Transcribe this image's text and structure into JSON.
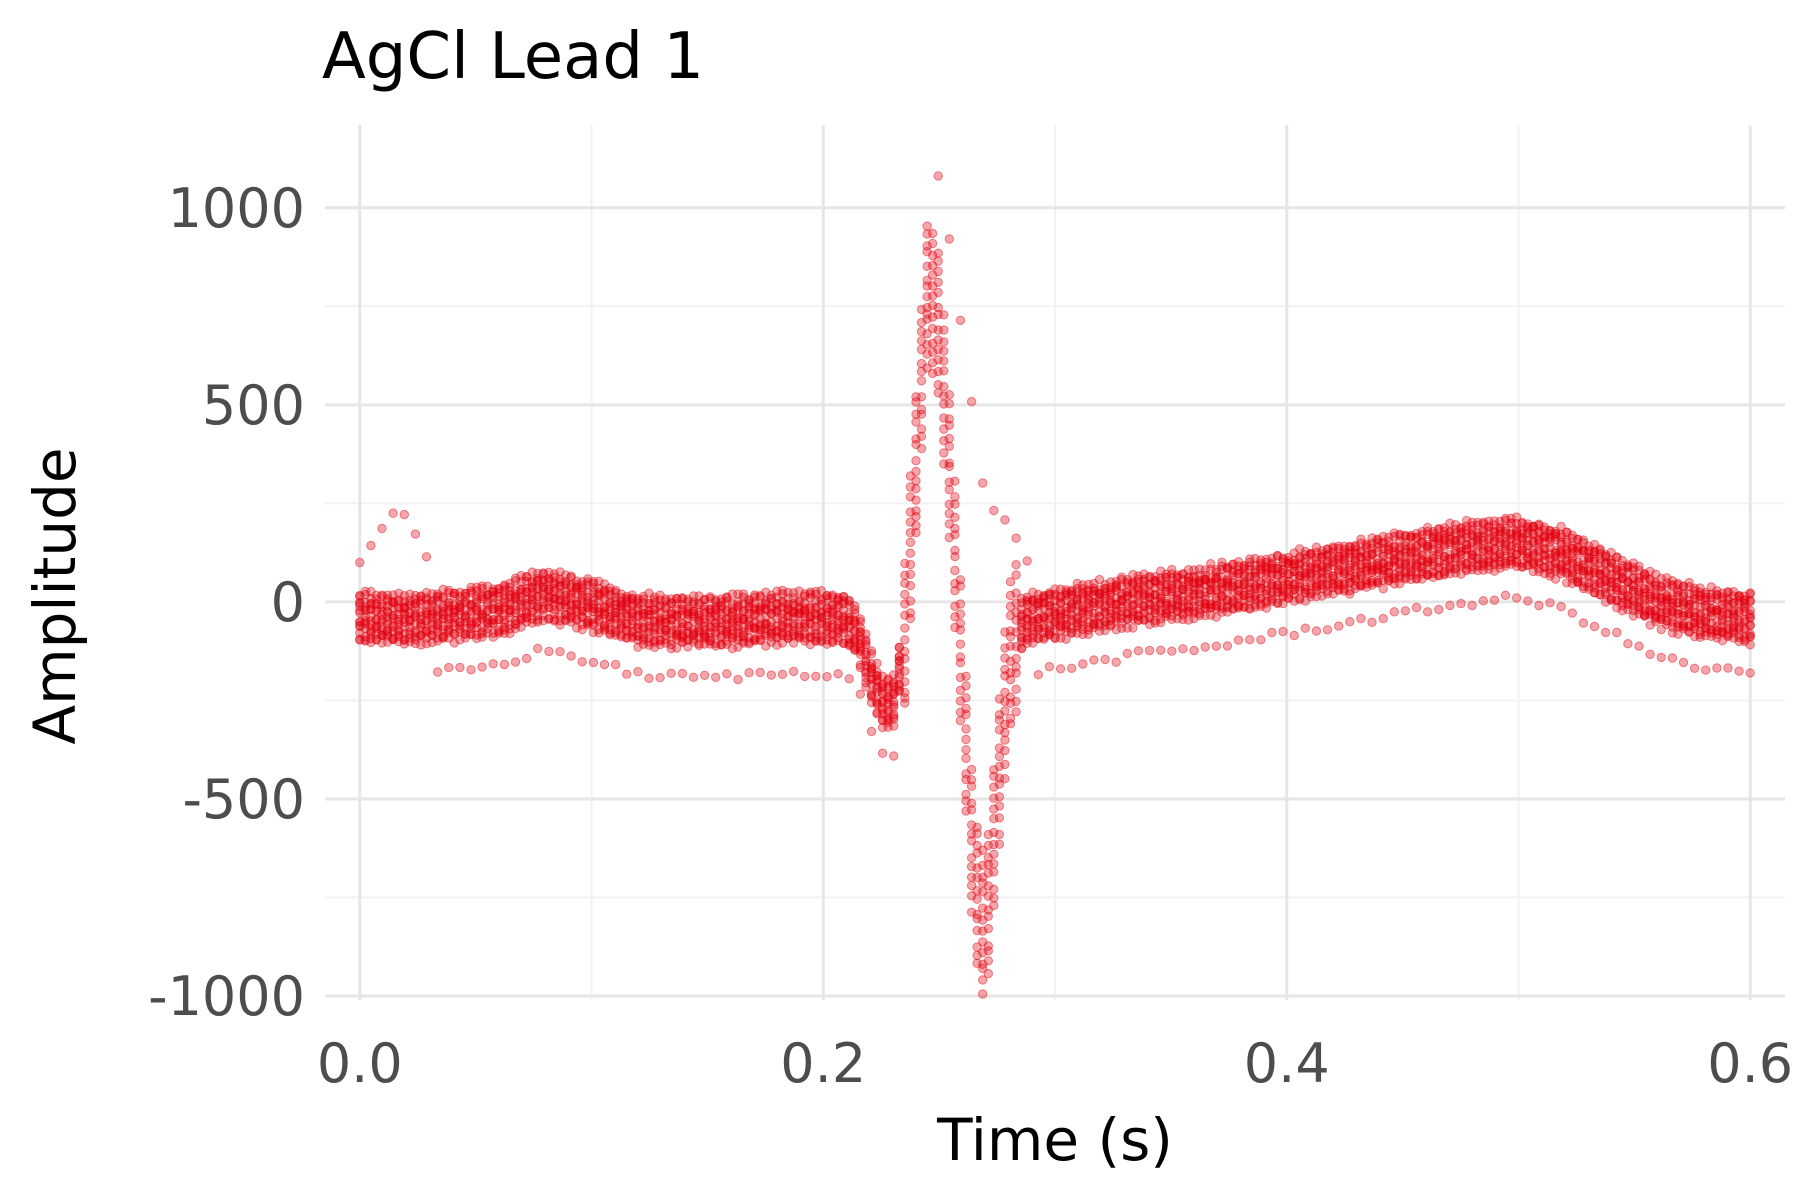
{
  "chart_data": {
    "type": "scatter",
    "title": "AgCl Lead 1",
    "xlabel": "Time (s)",
    "ylabel": "Amplitude",
    "xlim": [
      -0.015,
      0.615
    ],
    "ylim": [
      -1010,
      1210
    ],
    "x_ticks": [
      0.0,
      0.2,
      0.4,
      0.6
    ],
    "x_tick_labels": [
      "0.0",
      "0.2",
      "0.4",
      "0.6"
    ],
    "y_ticks": [
      -1000,
      -500,
      0,
      500,
      1000
    ],
    "y_tick_labels": [
      "-1000",
      "-500",
      "0",
      "500",
      "1000"
    ],
    "grid": true,
    "legend": "none",
    "point_color": "#e3000f",
    "point_opacity": 0.35,
    "series": [
      {
        "values_description_key": "mean_trace",
        "x": [
          0.0,
          0.02,
          0.04,
          0.06,
          0.08,
          0.1,
          0.12,
          0.14,
          0.16,
          0.18,
          0.2,
          0.21,
          0.215,
          0.22,
          0.225,
          0.23,
          0.235,
          0.24,
          0.245,
          0.25,
          0.255,
          0.26,
          0.265,
          0.27,
          0.275,
          0.28,
          0.285,
          0.29,
          0.3,
          0.32,
          0.34,
          0.36,
          0.38,
          0.4,
          0.42,
          0.44,
          0.46,
          0.48,
          0.5,
          0.52,
          0.54,
          0.56,
          0.58,
          0.6
        ],
        "y": [
          -40,
          -45,
          -35,
          -20,
          20,
          -10,
          -45,
          -50,
          -50,
          -40,
          -40,
          -45,
          -80,
          -180,
          -250,
          -260,
          -100,
          350,
          800,
          700,
          300,
          -200,
          -700,
          -850,
          -500,
          -150,
          -60,
          -40,
          -30,
          -10,
          10,
          20,
          40,
          60,
          80,
          100,
          120,
          140,
          150,
          120,
          60,
          0,
          -30,
          -40
        ]
      }
    ],
    "band_half_width": 60,
    "sample_step": 0.0024,
    "beats": 14,
    "outlier_beat": {
      "x": [
        0.0,
        0.01,
        0.015,
        0.02,
        0.03,
        0.24,
        0.25,
        0.27,
        0.28,
        0.29
      ],
      "y": [
        100,
        190,
        230,
        220,
        100,
        380,
        1110,
        250,
        200,
        80
      ]
    }
  }
}
